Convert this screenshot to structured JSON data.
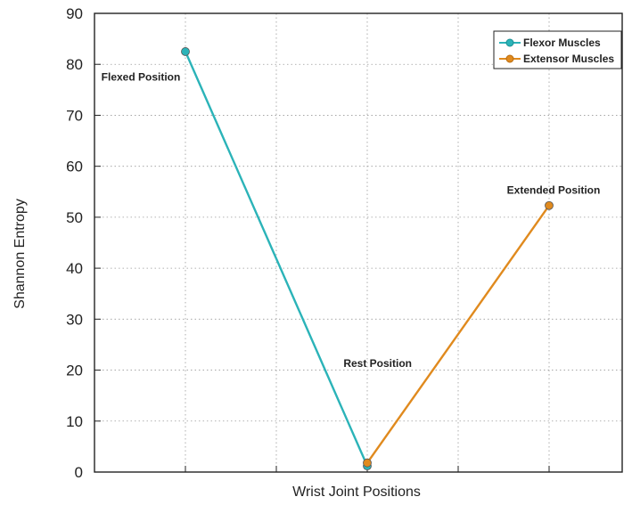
{
  "chart_data": {
    "type": "line",
    "xlabel": "Wrist Joint Positions",
    "ylabel": "Shannon Entropy",
    "ylim": [
      0,
      90
    ],
    "yticks": [
      "0",
      "10",
      "20",
      "30",
      "40",
      "50",
      "60",
      "70",
      "80",
      "90"
    ],
    "grid": true,
    "legend_position": "top-right",
    "series": [
      {
        "name": "Flexor Muscles",
        "color": "#2bb3b8",
        "points": [
          {
            "x": 1,
            "y": 82.5
          },
          {
            "x": 3,
            "y": 1.2
          }
        ]
      },
      {
        "name": "Extensor Muscles",
        "color": "#e08a1e",
        "points": [
          {
            "x": 3,
            "y": 1.8
          },
          {
            "x": 5,
            "y": 52.3
          }
        ]
      }
    ],
    "annotations": [
      {
        "text": "Flexed Position",
        "x": 1,
        "y": 77.5,
        "anchor": "middle",
        "dx": -50
      },
      {
        "text": "Rest Position",
        "x": 3,
        "y": 21.3,
        "anchor": "end",
        "dx": 50
      },
      {
        "text": "Extended Position",
        "x": 5,
        "y": 55.3,
        "anchor": "middle",
        "dx": 5
      }
    ]
  }
}
